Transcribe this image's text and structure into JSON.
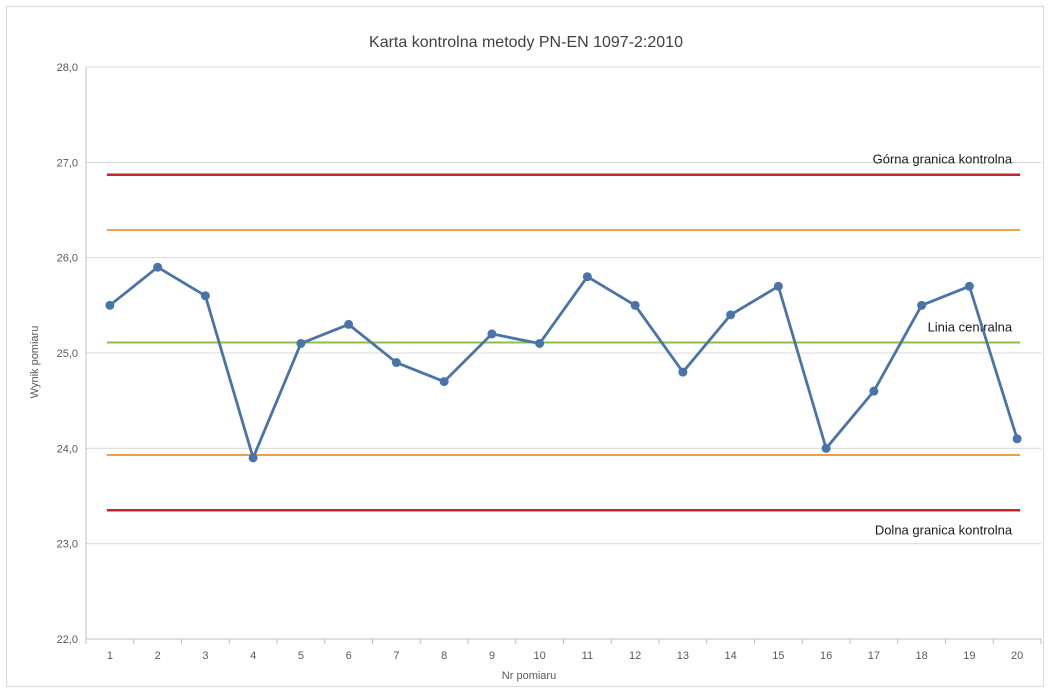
{
  "chart_data": {
    "type": "line",
    "title": "Karta kontrolna metody PN-EN 1097-2:2010",
    "xlabel": "Nr pomiaru",
    "ylabel": "Wynik pomiaru",
    "ylim": [
      22.0,
      28.0
    ],
    "y_ticks": [
      "22,0",
      "23,0",
      "24,0",
      "25,0",
      "26,0",
      "27,0",
      "28,0"
    ],
    "y_tick_values": [
      22.0,
      23.0,
      24.0,
      25.0,
      26.0,
      27.0,
      28.0
    ],
    "grid": true,
    "categories": [
      "1",
      "2",
      "3",
      "4",
      "5",
      "6",
      "7",
      "8",
      "9",
      "10",
      "11",
      "12",
      "13",
      "14",
      "15",
      "16",
      "17",
      "18",
      "19",
      "20"
    ],
    "series": [
      {
        "color": "#4a74a8",
        "values": [
          25.5,
          25.9,
          25.6,
          23.9,
          25.1,
          25.3,
          24.9,
          24.7,
          25.2,
          25.1,
          25.8,
          25.5,
          24.8,
          25.4,
          25.7,
          24.0,
          24.6,
          25.5,
          25.7,
          24.1
        ]
      }
    ],
    "reference_lines": [
      {
        "label": "Górna granica kontrolna",
        "value": 26.87,
        "color": "#c0272d"
      },
      {
        "label": "",
        "value": 26.29,
        "color": "#f0a04b"
      },
      {
        "label": "Linia centralna",
        "value": 25.11,
        "color": "#8cbd4d"
      },
      {
        "label": "",
        "value": 23.93,
        "color": "#f0a04b"
      },
      {
        "label": "Dolna granica kontrolna",
        "value": 23.35,
        "color": "#c0272d"
      }
    ]
  }
}
